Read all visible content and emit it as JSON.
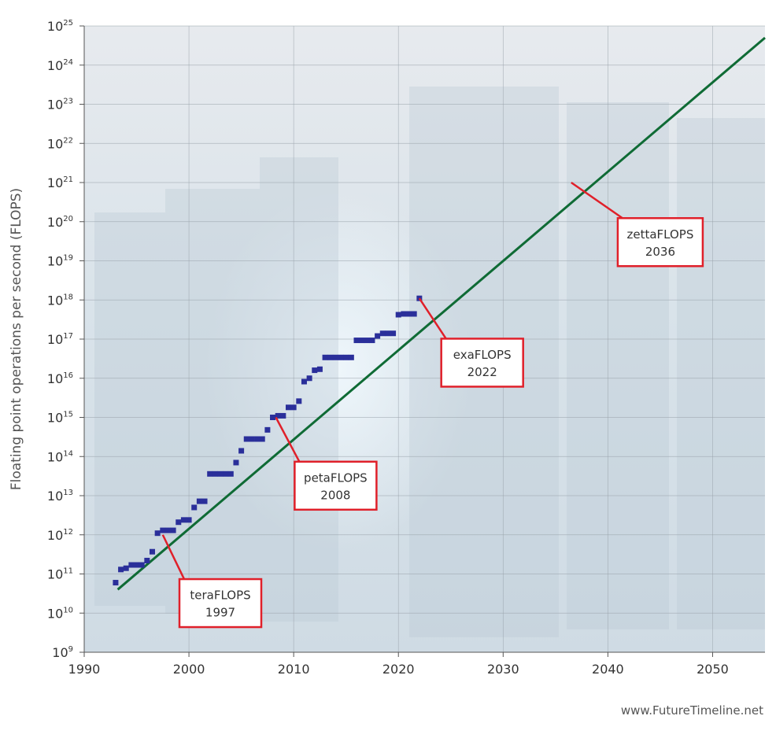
{
  "chart_data": {
    "type": "scatter",
    "ylabel": "Floating point operations per second (FLOPS)",
    "xlabel": "",
    "xlim": [
      1990,
      2055
    ],
    "ylim": [
      1000000000.0,
      1e+25
    ],
    "y_scale": "log",
    "grid": true,
    "x_ticks": [
      "1990",
      "2000",
      "2010",
      "2020",
      "2030",
      "2040",
      "2050"
    ],
    "y_tick_exponents": [
      "9",
      "10",
      "11",
      "12",
      "13",
      "14",
      "15",
      "16",
      "17",
      "18",
      "19",
      "20",
      "21",
      "22",
      "23",
      "24",
      "25"
    ],
    "y_tick_base": "10",
    "series": [
      {
        "kind": "scatter",
        "color": "#2a2f9a",
        "x": [
          1993.0,
          1993.5,
          1994.0,
          1994.5,
          1995.0,
          1995.5,
          1996.0,
          1996.5,
          1997.0,
          1997.5,
          1998.0,
          1998.5,
          1999.0,
          1999.5,
          2000.0,
          2000.5,
          2001.0,
          2001.5,
          2002.0,
          2002.5,
          2003.0,
          2003.5,
          2004.0,
          2004.5,
          2005.0,
          2005.5,
          2006.0,
          2006.5,
          2007.0,
          2007.5,
          2008.0,
          2008.5,
          2009.0,
          2009.5,
          2010.0,
          2010.5,
          2011.0,
          2011.5,
          2012.0,
          2012.5,
          2013.0,
          2013.5,
          2014.0,
          2014.5,
          2015.0,
          2015.5,
          2016.0,
          2016.5,
          2017.0,
          2017.5,
          2018.0,
          2018.5,
          2019.0,
          2019.5,
          2020.0,
          2020.5,
          2021.0,
          2021.5,
          2022.0
        ],
        "y": [
          60000000000.0,
          130000000000.0,
          140000000000.0,
          170000000000.0,
          170000000000.0,
          170000000000.0,
          220000000000.0,
          370000000000.0,
          1100000000000.0,
          1300000000000.0,
          1300000000000.0,
          1300000000000.0,
          2100000000000.0,
          2400000000000.0,
          2400000000000.0,
          5000000000000.0,
          7200000000000.0,
          7200000000000.0,
          36000000000000.0,
          36000000000000.0,
          36000000000000.0,
          36000000000000.0,
          36000000000000.0,
          70000000000000.0,
          140000000000000.0,
          280000000000000.0,
          280000000000000.0,
          280000000000000.0,
          280000000000000.0,
          480000000000000.0,
          1000000000000000.0,
          1100000000000000.0,
          1100000000000000.0,
          1800000000000000.0,
          1800000000000000.0,
          2600000000000000.0,
          8200000000000000.0,
          1e+16,
          1.6e+16,
          1.7e+16,
          3.4e+16,
          3.4e+16,
          3.4e+16,
          3.4e+16,
          3.4e+16,
          3.4e+16,
          9.3e+16,
          9.3e+16,
          9.3e+16,
          9.3e+16,
          1.2e+17,
          1.4e+17,
          1.4e+17,
          1.4e+17,
          4.2e+17,
          4.4e+17,
          4.4e+17,
          4.4e+17,
          1.1e+18
        ]
      },
      {
        "kind": "line",
        "color": "#0f6b35",
        "x": [
          1993.2,
          2055
        ],
        "y": [
          40000000000.0,
          5e+24
        ]
      }
    ],
    "annotations": [
      {
        "label": "teraFLOPS",
        "year": "1997",
        "point_x": 1997.5,
        "point_y": 1000000000000.0,
        "box_x": 2003,
        "box_y": 18000000000.0
      },
      {
        "label": "petaFLOPS",
        "year": "2008",
        "point_x": 2008.3,
        "point_y": 1000000000000000.0,
        "box_x": 2014,
        "box_y": 18000000000000.0
      },
      {
        "label": "exaFLOPS",
        "year": "2022",
        "point_x": 2022,
        "point_y": 1.1e+18,
        "box_x": 2028,
        "box_y": 2.5e+16
      },
      {
        "label": "zettaFLOPS",
        "year": "2036",
        "point_x": 2036.5,
        "point_y": 1e+21,
        "box_x": 2045,
        "box_y": 3e+19
      }
    ]
  },
  "credit": "www.FutureTimeline.net",
  "colors": {
    "annotation_border": "#e0202a",
    "background_tint": "#dfe6ec"
  }
}
